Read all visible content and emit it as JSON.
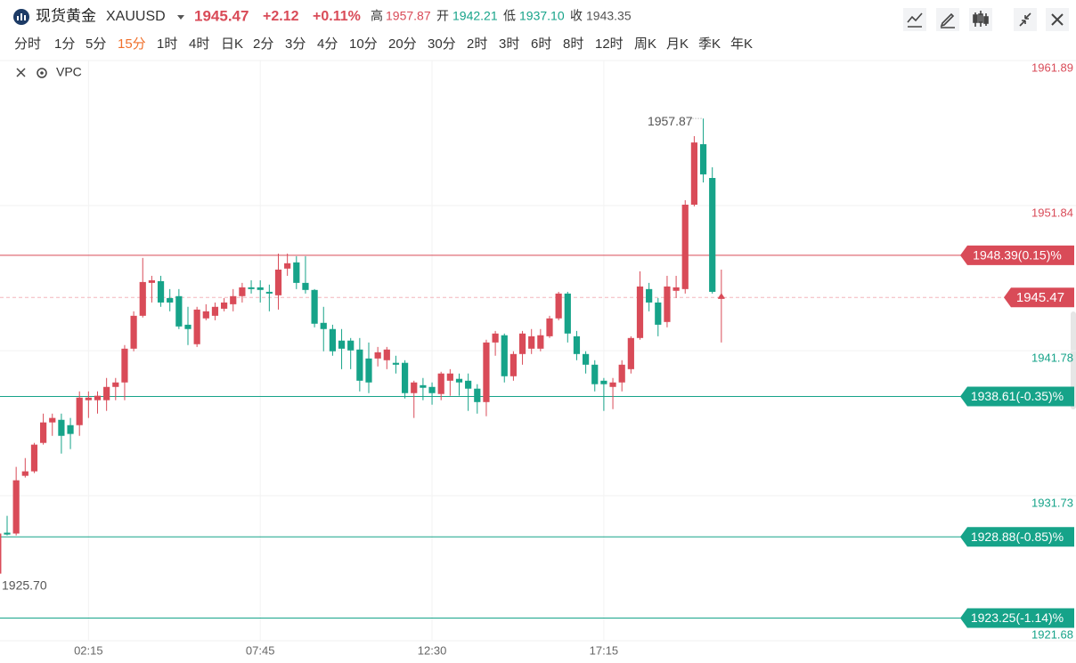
{
  "header": {
    "name": "现货黄金",
    "symbol": "XAUUSD",
    "price": "1945.47",
    "change": "+2.12",
    "change_pct": "+0.11%",
    "high_label": "高",
    "high": "1957.87",
    "open_label": "开",
    "open": "1942.21",
    "low_label": "低",
    "low": "1937.10",
    "close_label": "收",
    "close": "1943.35",
    "timeframes": [
      "分时",
      "1分",
      "5分",
      "15分",
      "1时",
      "4时",
      "日K",
      "2分",
      "3分",
      "4分",
      "10分",
      "20分",
      "30分",
      "2时",
      "3时",
      "6时",
      "8时",
      "12时",
      "周K",
      "月K",
      "季K",
      "年K"
    ],
    "active_timeframe": "15分",
    "indicator": "VPC"
  },
  "chart_data": {
    "type": "candlestick",
    "up_color": "#d94b58",
    "down_color": "#16a389",
    "categories": [
      null,
      null,
      null,
      null,
      null,
      null,
      null,
      null,
      null,
      null,
      "02:15",
      null,
      null,
      null,
      null,
      null,
      null,
      null,
      null,
      null,
      null,
      null,
      null,
      null,
      null,
      null,
      null,
      null,
      null,
      "07:45",
      null,
      null,
      null,
      null,
      null,
      null,
      null,
      null,
      null,
      null,
      null,
      null,
      null,
      null,
      null,
      null,
      null,
      null,
      "12:30",
      null,
      null,
      null,
      null,
      null,
      null,
      null,
      null,
      null,
      null,
      null,
      null,
      null,
      null,
      null,
      null,
      null,
      null,
      "17:15",
      null,
      null,
      null,
      null,
      null,
      null,
      null,
      null,
      null,
      null,
      null,
      null,
      null
    ],
    "open": [
      1926.33,
      1929.17,
      1929.11,
      1933.11,
      1933.42,
      1935.39,
      1936.81,
      1936.99,
      1936.62,
      1936.62,
      1938.35,
      1938.35,
      1938.35,
      1939.27,
      1939.58,
      1941.92,
      1944.2,
      1946.48,
      1946.6,
      1945.43,
      1945.56,
      1943.58,
      1942.23,
      1944.02,
      1944.2,
      1944.69,
      1945.0,
      1945.56,
      1946.17,
      1946.17,
      1945.86,
      1945.62,
      1947.47,
      1947.9,
      1946.48,
      1945.99,
      1943.71,
      1943.28,
      1942.48,
      1942.48,
      1941.86,
      1941.24,
      1941.24,
      1941.12,
      1940.94,
      1940.94,
      1938.84,
      1939.39,
      1939.27,
      1938.78,
      1939.7,
      1939.83,
      1939.7,
      1939.15,
      1938.22,
      1942.35,
      1942.85,
      1940.01,
      1941.55,
      1941.92,
      1941.92,
      1942.78,
      1944.02,
      1945.74,
      1942.78,
      1941.55,
      1940.81,
      1939.7,
      1939.27,
      1939.58,
      1940.5,
      1942.66,
      1946.05,
      1945.12,
      1943.77,
      1945.93,
      1946.05,
      1951.9,
      1956.09,
      1953.75,
      1945.37
    ],
    "high": [
      1929.23,
      1930.34,
      1933.73,
      1934.34,
      1935.39,
      1937.42,
      1937.42,
      1937.42,
      1937.12,
      1938.96,
      1938.96,
      1938.96,
      1939.89,
      1939.89,
      1942.17,
      1944.51,
      1948.21,
      1946.97,
      1946.97,
      1946.05,
      1946.05,
      1944.82,
      1944.82,
      1945.0,
      1945.12,
      1945.43,
      1946.05,
      1946.48,
      1946.66,
      1946.66,
      1946.36,
      1948.51,
      1948.51,
      1948.33,
      1948.33,
      1946.05,
      1944.82,
      1943.58,
      1943.28,
      1942.66,
      1942.66,
      1942.35,
      1942.04,
      1942.04,
      1941.43,
      1941.12,
      1939.7,
      1939.89,
      1939.58,
      1940.32,
      1940.5,
      1940.2,
      1940.2,
      1939.46,
      1942.54,
      1943.15,
      1942.97,
      1941.74,
      1943.15,
      1943.28,
      1943.28,
      1944.2,
      1945.86,
      1945.86,
      1943.15,
      1941.74,
      1941.12,
      1939.89,
      1939.89,
      1941.12,
      1942.78,
      1947.28,
      1946.48,
      1945.43,
      1946.97,
      1946.97,
      1952.21,
      1956.65,
      1957.87,
      1954.49,
      1947.4
    ],
    "low": [
      1925.7,
      1928.98,
      1928.98,
      1932.99,
      1933.3,
      1935.27,
      1935.88,
      1934.65,
      1934.96,
      1935.88,
      1937.12,
      1937.42,
      1937.61,
      1938.35,
      1938.35,
      1941.74,
      1944.08,
      1945.12,
      1944.82,
      1944.51,
      1943.28,
      1942.17,
      1942.04,
      1943.89,
      1943.89,
      1944.51,
      1944.51,
      1945.12,
      1945.74,
      1945.12,
      1944.51,
      1944.63,
      1946.97,
      1946.05,
      1945.74,
      1943.4,
      1941.74,
      1941.43,
      1940.5,
      1940.5,
      1938.96,
      1938.84,
      1940.69,
      1940.5,
      1940.2,
      1938.47,
      1937.12,
      1938.35,
      1938.04,
      1938.35,
      1938.66,
      1938.66,
      1937.61,
      1937.42,
      1937.24,
      1941.43,
      1939.58,
      1939.7,
      1940.81,
      1941.55,
      1941.74,
      1942.66,
      1943.89,
      1942.35,
      1941.12,
      1940.2,
      1938.96,
      1937.61,
      1937.73,
      1938.96,
      1940.2,
      1942.54,
      1944.51,
      1942.78,
      1943.4,
      1945.43,
      1945.74,
      1951.78,
      1953.44,
      1945.74,
      1942.35
    ],
    "close": [
      1929.11,
      1929.04,
      1932.8,
      1933.42,
      1935.27,
      1936.81,
      1937.12,
      1935.88,
      1936.01,
      1938.53,
      1938.53,
      1938.66,
      1939.27,
      1939.58,
      1941.92,
      1944.2,
      1946.54,
      1946.66,
      1945.12,
      1945.12,
      1943.46,
      1943.28,
      1944.63,
      1944.51,
      1944.82,
      1945.12,
      1945.56,
      1946.17,
      1946.05,
      1945.99,
      1945.74,
      1947.4,
      1947.84,
      1946.48,
      1945.99,
      1943.65,
      1943.28,
      1941.74,
      1941.92,
      1941.8,
      1939.7,
      1939.58,
      1941.67,
      1941.86,
      1940.81,
      1938.84,
      1939.58,
      1939.21,
      1938.84,
      1940.2,
      1940.2,
      1939.58,
      1939.15,
      1938.22,
      1942.35,
      1942.97,
      1940.01,
      1941.55,
      1942.97,
      1942.78,
      1942.85,
      1944.02,
      1945.74,
      1942.97,
      1941.55,
      1940.81,
      1939.46,
      1939.46,
      1939.58,
      1940.81,
      1942.66,
      1946.23,
      1945.12,
      1943.58,
      1946.23,
      1946.17,
      1951.9,
      1956.21,
      1954.0,
      1945.86,
      1945.47
    ],
    "ylim": [
      1921.68,
      1961.89
    ],
    "yticks": [
      1961.89,
      1951.84,
      1941.78,
      1931.73,
      1921.68
    ],
    "annotations": [
      {
        "value": 1957.87,
        "label": "1957.87"
      },
      {
        "value": 1925.7,
        "label": "1925.70"
      }
    ],
    "last": {
      "value": 1945.47,
      "label": "1945.47"
    },
    "levels": [
      {
        "value": 1948.39,
        "label": "1948.39(0.15)%",
        "color": "#d94b58"
      },
      {
        "value": 1938.61,
        "label": "1938.61(-0.35)%",
        "color": "#16a389"
      },
      {
        "value": 1928.88,
        "label": "1928.88(-0.85)%",
        "color": "#16a389"
      },
      {
        "value": 1923.25,
        "label": "1923.25(-1.14)%",
        "color": "#16a389"
      }
    ],
    "grid": true
  }
}
